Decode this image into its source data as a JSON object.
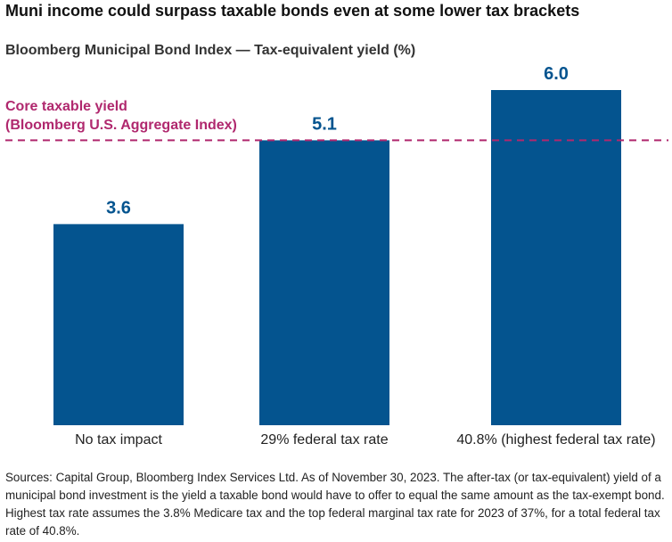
{
  "title": "Muni income could surpass taxable bonds even at some lower tax brackets",
  "subtitle": "Bloomberg Municipal Bond Index — Tax-equivalent yield (%)",
  "reference_line": {
    "label_line1": "Core taxable yield",
    "label_line2": "(Bloomberg U.S. Aggregate Index)",
    "value": 5.1,
    "color": "#b0286e"
  },
  "colors": {
    "bar": "#04548f",
    "label": "#04548f"
  },
  "chart_data": {
    "type": "bar",
    "title": "Muni income could surpass taxable bonds even at some lower tax brackets",
    "subtitle": "Bloomberg Municipal Bond Index — Tax-equivalent yield (%)",
    "categories": [
      "No tax impact",
      "29% federal tax rate",
      "40.8% (highest federal tax rate)"
    ],
    "values": [
      3.6,
      5.1,
      6.0
    ],
    "data_labels": [
      "3.6",
      "5.1",
      "6.0"
    ],
    "ylim": [
      0,
      6.0
    ],
    "grid": false,
    "reference_line": {
      "name": "Core taxable yield (Bloomberg U.S. Aggregate Index)",
      "value": 5.1
    }
  },
  "source_note": "Sources: Capital Group, Bloomberg Index Services Ltd. As of November 30, 2023. The after-tax (or tax-equivalent) yield of a municipal bond investment is the yield a taxable bond would have to offer to equal the same amount as the tax-exempt bond. Highest tax rate assumes the 3.8% Medicare tax and the top federal marginal tax rate for 2023 of 37%, for a total federal tax rate of 40.8%."
}
